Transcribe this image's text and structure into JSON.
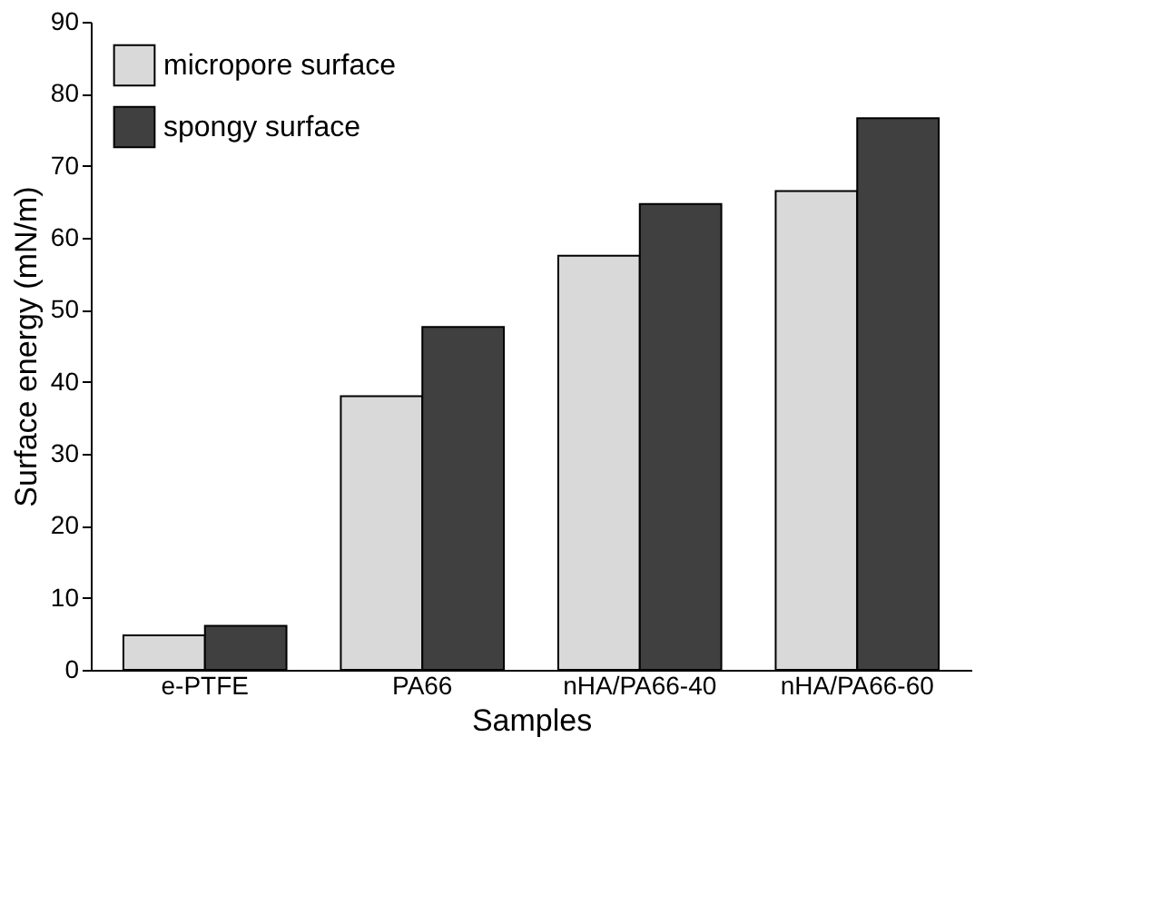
{
  "chart_data": {
    "type": "bar",
    "xlabel": "Samples",
    "ylabel": "Surface energy (mN/m)",
    "categories": [
      "e-PTFE",
      "PA66",
      "nHA/PA66-40",
      "nHA/PA66-60"
    ],
    "series": [
      {
        "name": "micropore surface",
        "color": "#d9d9d9",
        "values": [
          4.8,
          38,
          57.5,
          66.5
        ]
      },
      {
        "name": "spongy surface",
        "color": "#404040",
        "values": [
          6.1,
          47.6,
          64.7,
          76.6
        ]
      }
    ],
    "ylim": [
      0,
      90
    ],
    "yticks": [
      0,
      10,
      20,
      30,
      40,
      50,
      60,
      70,
      80,
      90
    ],
    "grid": false,
    "legend": "top left"
  }
}
